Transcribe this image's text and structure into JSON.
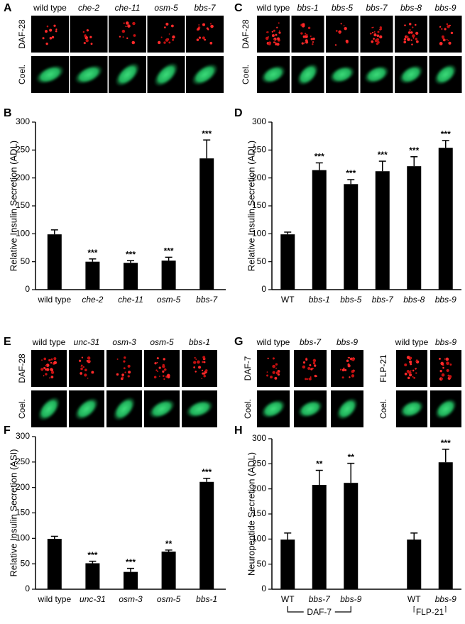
{
  "panels": [
    {
      "letter": "A",
      "groups": [
        {
          "rows": [
            "DAF-28",
            "Coel."
          ],
          "columns": [
            "wild type",
            "che-2",
            "che-11",
            "osm-5",
            "bbs-7"
          ],
          "italic": [
            false,
            true,
            true,
            true,
            true
          ]
        }
      ]
    },
    {
      "letter": "C",
      "groups": [
        {
          "rows": [
            "DAF-28",
            "Coel."
          ],
          "columns": [
            "wild type",
            "bbs-1",
            "bbs-5",
            "bbs-7",
            "bbs-8",
            "bbs-9"
          ],
          "italic": [
            false,
            true,
            true,
            true,
            true,
            true
          ]
        }
      ]
    },
    {
      "letter": "E",
      "groups": [
        {
          "rows": [
            "DAF-28",
            "Coel."
          ],
          "columns": [
            "wild type",
            "unc-31",
            "osm-3",
            "osm-5",
            "bbs-1"
          ],
          "italic": [
            false,
            true,
            true,
            true,
            true
          ]
        }
      ]
    },
    {
      "letter": "G",
      "groups": [
        {
          "rows": [
            "DAF-7",
            "Coel."
          ],
          "columns": [
            "wild type",
            "bbs-7",
            "bbs-9"
          ],
          "italic": [
            false,
            true,
            true
          ]
        },
        {
          "rows": [
            "FLP-21",
            "Coel."
          ],
          "columns": [
            "wild type",
            "bbs-9"
          ],
          "italic": [
            false,
            true
          ]
        }
      ]
    }
  ],
  "chart_data": [
    {
      "type": "bar",
      "panel": "B",
      "ylabel": "Relative Insulin Secretion (ADL)",
      "categories": [
        "wild type",
        "che-2",
        "che-11",
        "osm-5",
        "bbs-7"
      ],
      "category_italic": [
        false,
        true,
        true,
        true,
        true
      ],
      "values": [
        99,
        50,
        48,
        52,
        235
      ],
      "errors": [
        8,
        5,
        4,
        6,
        33
      ],
      "annotations": [
        null,
        "***",
        "***",
        "***",
        "***"
      ],
      "color": "#000000",
      "ylim": [
        0,
        300
      ],
      "yticks": [
        0,
        50,
        100,
        150,
        200,
        250,
        300
      ]
    },
    {
      "type": "bar",
      "panel": "D",
      "ylabel": "Relative Insulin Secretion (ADL)",
      "categories": [
        "WT",
        "bbs-1",
        "bbs-5",
        "bbs-7",
        "bbs-8",
        "bbs-9"
      ],
      "category_italic": [
        false,
        true,
        true,
        true,
        true,
        true
      ],
      "values": [
        99,
        214,
        189,
        212,
        221,
        254
      ],
      "errors": [
        4,
        13,
        8,
        18,
        17,
        13
      ],
      "annotations": [
        null,
        "***",
        "***",
        "***",
        "***",
        "***"
      ],
      "color": "#000000",
      "ylim": [
        0,
        300
      ],
      "yticks": [
        0,
        50,
        100,
        150,
        200,
        250,
        300
      ]
    },
    {
      "type": "bar",
      "panel": "F",
      "ylabel": "Relative Insulin Secretion (ASI)",
      "categories": [
        "wild type",
        "unc-31",
        "osm-3",
        "osm-5",
        "bbs-1"
      ],
      "category_italic": [
        false,
        true,
        true,
        true,
        true
      ],
      "values": [
        99,
        51,
        34,
        74,
        211
      ],
      "errors": [
        5,
        4,
        7,
        3,
        7
      ],
      "annotations": [
        null,
        "***",
        "***",
        "**",
        "***"
      ],
      "color": "#000000",
      "ylim": [
        0,
        300
      ],
      "yticks": [
        0,
        50,
        100,
        150,
        200,
        250,
        300
      ]
    },
    {
      "type": "bar",
      "panel": "H",
      "ylabel": "Neuropeptide Secretion (ADL)",
      "categories": [
        "WT",
        "bbs-7",
        "bbs-9",
        null,
        "WT",
        "bbs-9"
      ],
      "category_italic": [
        false,
        true,
        true,
        false,
        false,
        true
      ],
      "values": [
        99,
        208,
        212,
        null,
        99,
        253
      ],
      "errors": [
        13,
        29,
        39,
        null,
        13,
        26
      ],
      "annotations": [
        null,
        "**",
        "**",
        null,
        null,
        "***"
      ],
      "group_labels": [
        "DAF-7",
        "FLP-21"
      ],
      "color": "#000000",
      "ylim": [
        0,
        300
      ],
      "yticks": [
        0,
        50,
        100,
        150,
        200,
        250,
        300
      ]
    }
  ]
}
